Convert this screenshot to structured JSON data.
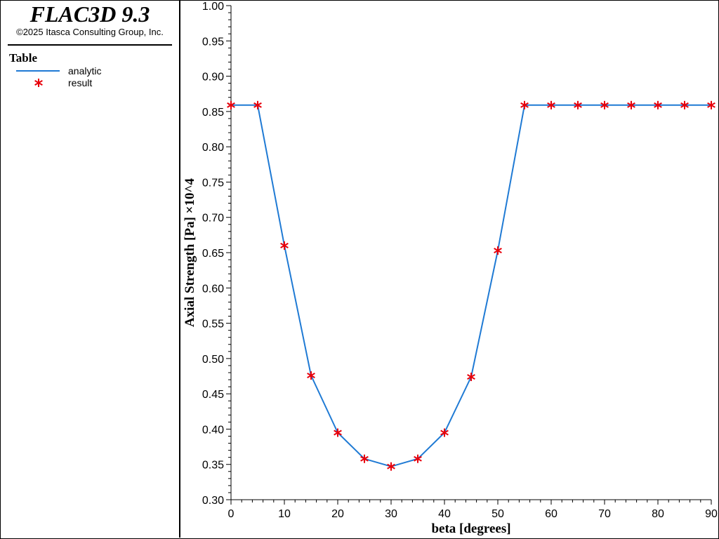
{
  "app": {
    "title": "FLAC3D 9.3",
    "copyright": "©2025 Itasca Consulting Group, Inc."
  },
  "legend": {
    "title": "Table",
    "items": [
      {
        "label": "analytic",
        "kind": "line",
        "color": "#1f7ad4"
      },
      {
        "label": "result",
        "kind": "star",
        "color": "#e8000b"
      }
    ]
  },
  "chart_data": {
    "type": "line",
    "xlabel": "beta [degrees]",
    "ylabel": "Axial Strength [Pa] ×10^4",
    "xlim": [
      0,
      90
    ],
    "ylim": [
      0.3,
      1.0
    ],
    "x_ticks": [
      0,
      10,
      20,
      30,
      40,
      50,
      60,
      70,
      80,
      90
    ],
    "y_ticks": [
      "0.30",
      "0.35",
      "0.40",
      "0.45",
      "0.50",
      "0.55",
      "0.60",
      "0.65",
      "0.70",
      "0.75",
      "0.80",
      "0.85",
      "0.90",
      "0.95",
      "1.00"
    ],
    "grid": false,
    "series": [
      {
        "name": "analytic",
        "style": "line",
        "color": "#1f7ad4",
        "x": [
          0,
          5,
          10,
          15,
          20,
          25,
          30,
          35,
          40,
          45,
          50,
          55,
          60,
          65,
          70,
          75,
          80,
          85,
          90
        ],
        "y": [
          0.859,
          0.859,
          0.66,
          0.476,
          0.395,
          0.358,
          0.347,
          0.358,
          0.395,
          0.474,
          0.653,
          0.859,
          0.859,
          0.859,
          0.859,
          0.859,
          0.859,
          0.859,
          0.859
        ]
      },
      {
        "name": "result",
        "style": "star",
        "color": "#e8000b",
        "x": [
          0,
          5,
          10,
          15,
          20,
          25,
          30,
          35,
          40,
          45,
          50,
          55,
          60,
          65,
          70,
          75,
          80,
          85,
          90
        ],
        "y": [
          0.859,
          0.859,
          0.66,
          0.476,
          0.395,
          0.358,
          0.347,
          0.358,
          0.395,
          0.474,
          0.653,
          0.859,
          0.859,
          0.859,
          0.859,
          0.859,
          0.859,
          0.859,
          0.859
        ]
      }
    ]
  }
}
